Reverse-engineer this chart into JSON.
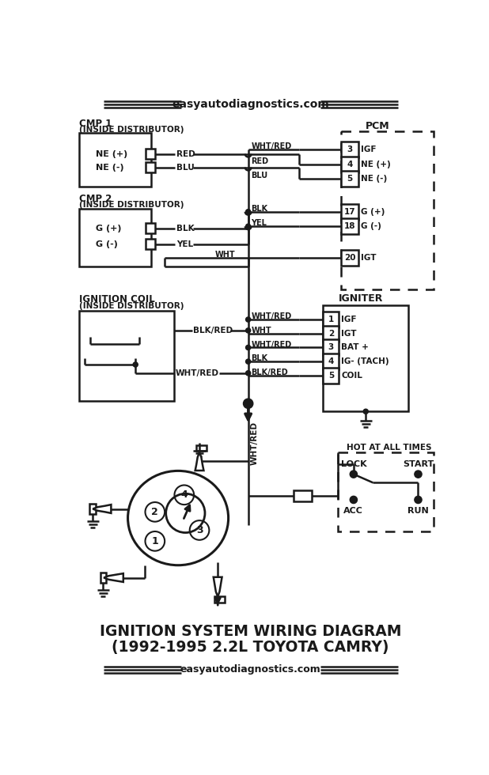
{
  "title_line1": "IGNITION SYSTEM WIRING DIAGRAM",
  "title_line2": "(1992-1995 2.2L TOYOTA CAMRY)",
  "website": "easyautodiagnostics.com",
  "bg": "#ffffff",
  "fg": "#1a1a1a"
}
